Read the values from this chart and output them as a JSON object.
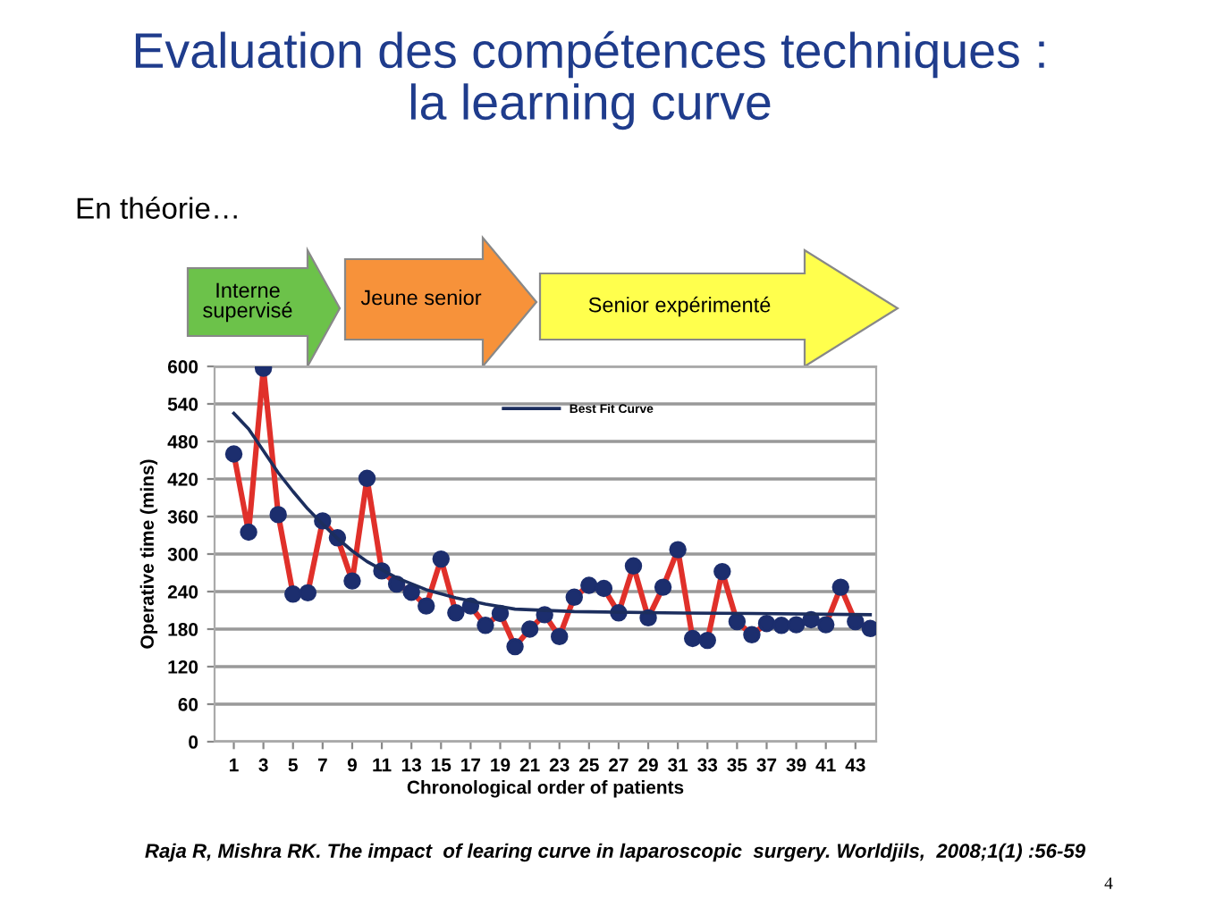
{
  "chart_data": {
    "type": "line",
    "title": "Evaluation des compétences techniques :\nla learning curve",
    "subtitle": "En théorie…",
    "xlabel": "Chronological order of patients",
    "ylabel": "Operative time (mins)",
    "annotations": [
      "Interne\nsupervisé",
      "Jeune senior",
      "Senior expérimenté",
      "Raja R, Mishra RK. The impact  of learing curve in laparoscopic  surgery. Worldjils,  2008;1(1) :56-59",
      "4"
    ],
    "x": [
      1,
      2,
      3,
      4,
      5,
      6,
      7,
      8,
      9,
      10,
      11,
      12,
      13,
      14,
      15,
      16,
      17,
      18,
      19,
      20,
      21,
      22,
      23,
      24,
      25,
      26,
      27,
      28,
      29,
      30,
      31,
      32,
      33,
      34,
      35,
      36,
      37,
      38,
      39,
      40,
      41,
      42,
      43,
      44
    ],
    "series": [
      {
        "color": "#e0302a",
        "marker": "circle",
        "values": [
          460,
          335,
          597,
          363,
          236,
          238,
          353,
          326,
          257,
          421,
          273,
          252,
          239,
          217,
          292,
          206,
          217,
          186,
          205,
          152,
          180,
          203,
          168,
          231,
          250,
          245,
          206,
          281,
          198,
          247,
          307,
          165,
          162,
          272,
          192,
          171,
          189,
          186,
          187,
          195,
          187,
          247,
          192,
          181
        ]
      },
      {
        "name": "Best Fit Curve",
        "type": "line",
        "color": "#1c2e5e",
        "x": [
          1,
          2,
          3,
          4,
          5,
          6,
          7,
          8,
          9,
          10,
          12,
          14,
          16,
          18,
          20,
          24,
          30,
          36,
          44
        ],
        "values": [
          525,
          500,
          465,
          430,
          400,
          372,
          348,
          325,
          305,
          288,
          262,
          243,
          230,
          220,
          212,
          208,
          206,
          205,
          203
        ]
      }
    ],
    "xlim": [
      -0.3,
      44.4
    ],
    "xticks": [
      1,
      3,
      5,
      7,
      9,
      11,
      13,
      15,
      17,
      19,
      21,
      23,
      25,
      27,
      29,
      31,
      33,
      35,
      37,
      39,
      41,
      43
    ],
    "ylim": [
      0,
      600
    ],
    "yticks": [
      0,
      60,
      120,
      180,
      240,
      300,
      360,
      420,
      480,
      540,
      600
    ],
    "grid": "y",
    "legend": "top"
  }
}
